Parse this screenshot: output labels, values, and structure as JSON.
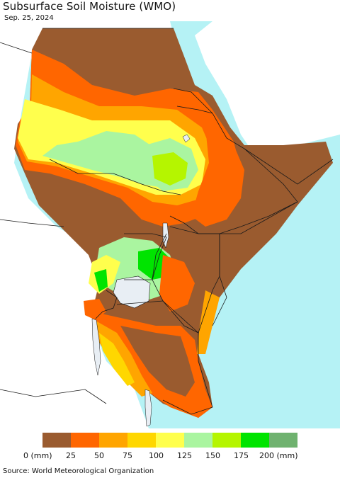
{
  "title": "Subsurface Soil Moisture (WMO)",
  "date": "Sep. 25, 2024",
  "source": "Source: World Meteorological Organization",
  "colors": {
    "ocean": "#b5f2f5",
    "land_outside": "#ffffff",
    "border": "#1a1a1a",
    "lake": "#e8eef4"
  },
  "legend": {
    "colors": [
      "#9a5b2f",
      "#ff6600",
      "#ffa500",
      "#ffd700",
      "#ffff4d",
      "#aaf5a0",
      "#b5f500",
      "#00e400",
      "#6fb26f"
    ],
    "ticks": [
      "0 (mm)",
      "25",
      "50",
      "75",
      "100",
      "125",
      "150",
      "175",
      "200 (mm)"
    ]
  }
}
